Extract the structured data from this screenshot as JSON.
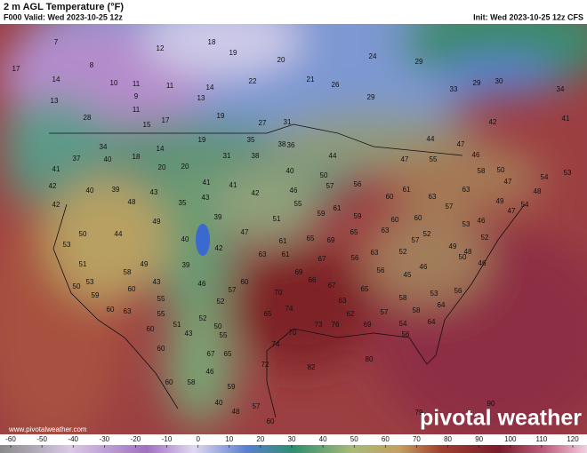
{
  "header": {
    "title": "2 m AGL Temperature (°F)",
    "valid": "F000 Valid: Wed 2023-10-25 12z",
    "init": "Init: Wed 2023-10-25 12z CFS"
  },
  "watermark": "pivotal weather",
  "url": "www.pivotalweather.com",
  "colorbar": {
    "ticks": [
      -60,
      -50,
      -40,
      -30,
      -20,
      -10,
      0,
      10,
      20,
      30,
      40,
      50,
      60,
      70,
      80,
      90,
      100,
      110,
      120
    ]
  },
  "temperature_labels": [
    7,
    17,
    8,
    14,
    10,
    11,
    11,
    14,
    12,
    18,
    19,
    20,
    22,
    21,
    24,
    26,
    29,
    9,
    13,
    13,
    11,
    28,
    15,
    17,
    19,
    27,
    31,
    29,
    30,
    33,
    34,
    38,
    35,
    19,
    34,
    18,
    14,
    20,
    20,
    42,
    41,
    47,
    46,
    44,
    37,
    40,
    41,
    31,
    38,
    36,
    40,
    44,
    55,
    58,
    50,
    53,
    47,
    54,
    48,
    49,
    47,
    54,
    42,
    40,
    39,
    43,
    41,
    42,
    46,
    50,
    57,
    56,
    47,
    61,
    60,
    63,
    63,
    57,
    60,
    60,
    59,
    61,
    59,
    55,
    51,
    41,
    43,
    35,
    39,
    48,
    42,
    49,
    47,
    40,
    42,
    39,
    44,
    50,
    53,
    51,
    58,
    53,
    63,
    65,
    69,
    61,
    65,
    63,
    61,
    57,
    52,
    49,
    52,
    46,
    48,
    52,
    63,
    50,
    46,
    46,
    45,
    56,
    56,
    67,
    69,
    66,
    60,
    57,
    46,
    43,
    49,
    60,
    53,
    50,
    59,
    60,
    63,
    55,
    55,
    60,
    51,
    52,
    43,
    50,
    55,
    52,
    65,
    70,
    74,
    70,
    73,
    67,
    65,
    63,
    62,
    57,
    58,
    53,
    58,
    54,
    64,
    56,
    76,
    69,
    56,
    64,
    74,
    82,
    80,
    65,
    67,
    59,
    46,
    40,
    72,
    60,
    60,
    58,
    48,
    57,
    60,
    90,
    79,
    29
  ]
}
